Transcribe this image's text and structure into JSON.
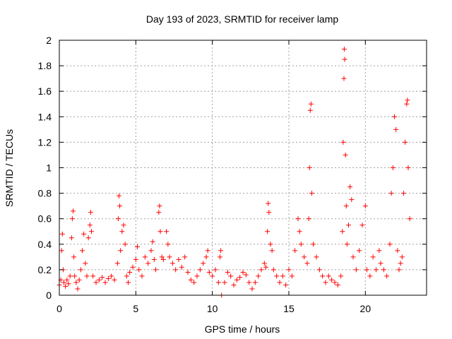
{
  "chart_data": {
    "type": "scatter",
    "title": "Day 193 of 2023, SRMTID for receiver lamp",
    "xlabel": "GPS time / hours",
    "ylabel": "SRMTID / TECUs",
    "xlim": [
      0,
      24
    ],
    "ylim": [
      0,
      2
    ],
    "xticks": [
      0,
      5,
      10,
      15,
      20
    ],
    "xtick_labels": [
      "0",
      "5",
      "10",
      "15",
      "20"
    ],
    "yticks": [
      0,
      0.2,
      0.4,
      0.6,
      0.8,
      1,
      1.2,
      1.4,
      1.6,
      1.8,
      2
    ],
    "ytick_labels": [
      "0",
      "0.2",
      "0.4",
      "0.6",
      "0.8",
      "1",
      "1.2",
      "1.4",
      "1.6",
      "1.8",
      "2"
    ],
    "grid": true,
    "marker": "+",
    "color": "#ff0000",
    "series": [
      {
        "name": "SRMTID",
        "points": [
          [
            0.0,
            0.08
          ],
          [
            0.1,
            0.12
          ],
          [
            0.15,
            0.35
          ],
          [
            0.2,
            0.48
          ],
          [
            0.25,
            0.2
          ],
          [
            0.3,
            0.1
          ],
          [
            0.4,
            0.07
          ],
          [
            0.5,
            0.12
          ],
          [
            0.6,
            0.09
          ],
          [
            0.7,
            0.15
          ],
          [
            0.8,
            0.45
          ],
          [
            0.85,
            0.6
          ],
          [
            0.9,
            0.66
          ],
          [
            0.95,
            0.3
          ],
          [
            1.0,
            0.15
          ],
          [
            1.1,
            0.1
          ],
          [
            1.2,
            0.05
          ],
          [
            1.3,
            0.12
          ],
          [
            1.4,
            0.2
          ],
          [
            1.5,
            0.35
          ],
          [
            1.6,
            0.48
          ],
          [
            1.7,
            0.25
          ],
          [
            1.8,
            0.15
          ],
          [
            1.9,
            0.45
          ],
          [
            2.0,
            0.55
          ],
          [
            2.05,
            0.65
          ],
          [
            2.1,
            0.5
          ],
          [
            2.2,
            0.15
          ],
          [
            2.4,
            0.1
          ],
          [
            2.6,
            0.12
          ],
          [
            2.8,
            0.14
          ],
          [
            3.0,
            0.1
          ],
          [
            3.2,
            0.13
          ],
          [
            3.4,
            0.15
          ],
          [
            3.6,
            0.12
          ],
          [
            3.8,
            0.25
          ],
          [
            3.85,
            0.6
          ],
          [
            3.9,
            0.78
          ],
          [
            3.95,
            0.7
          ],
          [
            4.0,
            0.35
          ],
          [
            4.1,
            0.5
          ],
          [
            4.2,
            0.55
          ],
          [
            4.3,
            0.4
          ],
          [
            4.4,
            0.15
          ],
          [
            4.5,
            0.1
          ],
          [
            4.6,
            0.18
          ],
          [
            4.8,
            0.22
          ],
          [
            5.0,
            0.28
          ],
          [
            5.1,
            0.38
          ],
          [
            5.2,
            0.2
          ],
          [
            5.4,
            0.15
          ],
          [
            5.6,
            0.3
          ],
          [
            5.8,
            0.25
          ],
          [
            6.0,
            0.35
          ],
          [
            6.1,
            0.42
          ],
          [
            6.2,
            0.28
          ],
          [
            6.3,
            0.2
          ],
          [
            6.5,
            0.65
          ],
          [
            6.55,
            0.7
          ],
          [
            6.6,
            0.5
          ],
          [
            6.7,
            0.3
          ],
          [
            6.8,
            0.28
          ],
          [
            7.0,
            0.5
          ],
          [
            7.1,
            0.4
          ],
          [
            7.2,
            0.3
          ],
          [
            7.4,
            0.25
          ],
          [
            7.6,
            0.2
          ],
          [
            7.8,
            0.28
          ],
          [
            8.0,
            0.22
          ],
          [
            8.2,
            0.3
          ],
          [
            8.4,
            0.18
          ],
          [
            8.6,
            0.12
          ],
          [
            8.8,
            0.1
          ],
          [
            9.0,
            0.15
          ],
          [
            9.2,
            0.2
          ],
          [
            9.4,
            0.25
          ],
          [
            9.6,
            0.3
          ],
          [
            9.7,
            0.35
          ],
          [
            9.8,
            0.18
          ],
          [
            10.0,
            0.15
          ],
          [
            10.2,
            0.2
          ],
          [
            10.4,
            0.1
          ],
          [
            10.5,
            0.3
          ],
          [
            10.55,
            0.35
          ],
          [
            10.6,
            0.0
          ],
          [
            10.8,
            0.1
          ],
          [
            11.0,
            0.18
          ],
          [
            11.2,
            0.15
          ],
          [
            11.4,
            0.08
          ],
          [
            11.6,
            0.12
          ],
          [
            11.8,
            0.14
          ],
          [
            12.0,
            0.18
          ],
          [
            12.2,
            0.16
          ],
          [
            12.4,
            0.1
          ],
          [
            12.6,
            0.05
          ],
          [
            12.8,
            0.1
          ],
          [
            13.0,
            0.15
          ],
          [
            13.2,
            0.2
          ],
          [
            13.4,
            0.25
          ],
          [
            13.5,
            0.22
          ],
          [
            13.6,
            0.5
          ],
          [
            13.65,
            0.72
          ],
          [
            13.7,
            0.65
          ],
          [
            13.8,
            0.4
          ],
          [
            13.9,
            0.35
          ],
          [
            14.0,
            0.2
          ],
          [
            14.2,
            0.15
          ],
          [
            14.4,
            0.1
          ],
          [
            14.6,
            0.15
          ],
          [
            14.8,
            0.08
          ],
          [
            15.0,
            0.2
          ],
          [
            15.2,
            0.15
          ],
          [
            15.4,
            0.35
          ],
          [
            15.6,
            0.6
          ],
          [
            15.7,
            0.5
          ],
          [
            15.8,
            0.4
          ],
          [
            16.0,
            0.3
          ],
          [
            16.2,
            0.25
          ],
          [
            16.3,
            0.6
          ],
          [
            16.35,
            1.0
          ],
          [
            16.4,
            1.45
          ],
          [
            16.45,
            1.5
          ],
          [
            16.5,
            0.8
          ],
          [
            16.6,
            0.4
          ],
          [
            16.8,
            0.3
          ],
          [
            17.0,
            0.2
          ],
          [
            17.2,
            0.15
          ],
          [
            17.4,
            0.1
          ],
          [
            17.6,
            0.15
          ],
          [
            17.8,
            0.12
          ],
          [
            18.0,
            0.1
          ],
          [
            18.2,
            0.08
          ],
          [
            18.4,
            0.15
          ],
          [
            18.5,
            0.5
          ],
          [
            18.55,
            1.2
          ],
          [
            18.6,
            1.7
          ],
          [
            18.62,
            1.93
          ],
          [
            18.65,
            1.85
          ],
          [
            18.7,
            1.1
          ],
          [
            18.75,
            0.7
          ],
          [
            18.8,
            0.4
          ],
          [
            18.9,
            0.55
          ],
          [
            19.0,
            0.85
          ],
          [
            19.1,
            0.75
          ],
          [
            19.2,
            0.3
          ],
          [
            19.4,
            0.2
          ],
          [
            19.6,
            0.35
          ],
          [
            19.8,
            0.55
          ],
          [
            20.0,
            0.7
          ],
          [
            20.1,
            0.2
          ],
          [
            20.3,
            0.15
          ],
          [
            20.5,
            0.3
          ],
          [
            20.7,
            0.2
          ],
          [
            20.9,
            0.35
          ],
          [
            21.0,
            0.25
          ],
          [
            21.2,
            0.2
          ],
          [
            21.4,
            0.15
          ],
          [
            21.6,
            0.4
          ],
          [
            21.7,
            0.8
          ],
          [
            21.8,
            1.0
          ],
          [
            21.9,
            1.4
          ],
          [
            22.0,
            1.3
          ],
          [
            22.1,
            0.35
          ],
          [
            22.2,
            0.2
          ],
          [
            22.3,
            0.25
          ],
          [
            22.4,
            0.3
          ],
          [
            22.5,
            0.8
          ],
          [
            22.6,
            1.2
          ],
          [
            22.7,
            1.5
          ],
          [
            22.75,
            1.53
          ],
          [
            22.8,
            1.0
          ],
          [
            22.9,
            0.6
          ]
        ]
      }
    ]
  }
}
